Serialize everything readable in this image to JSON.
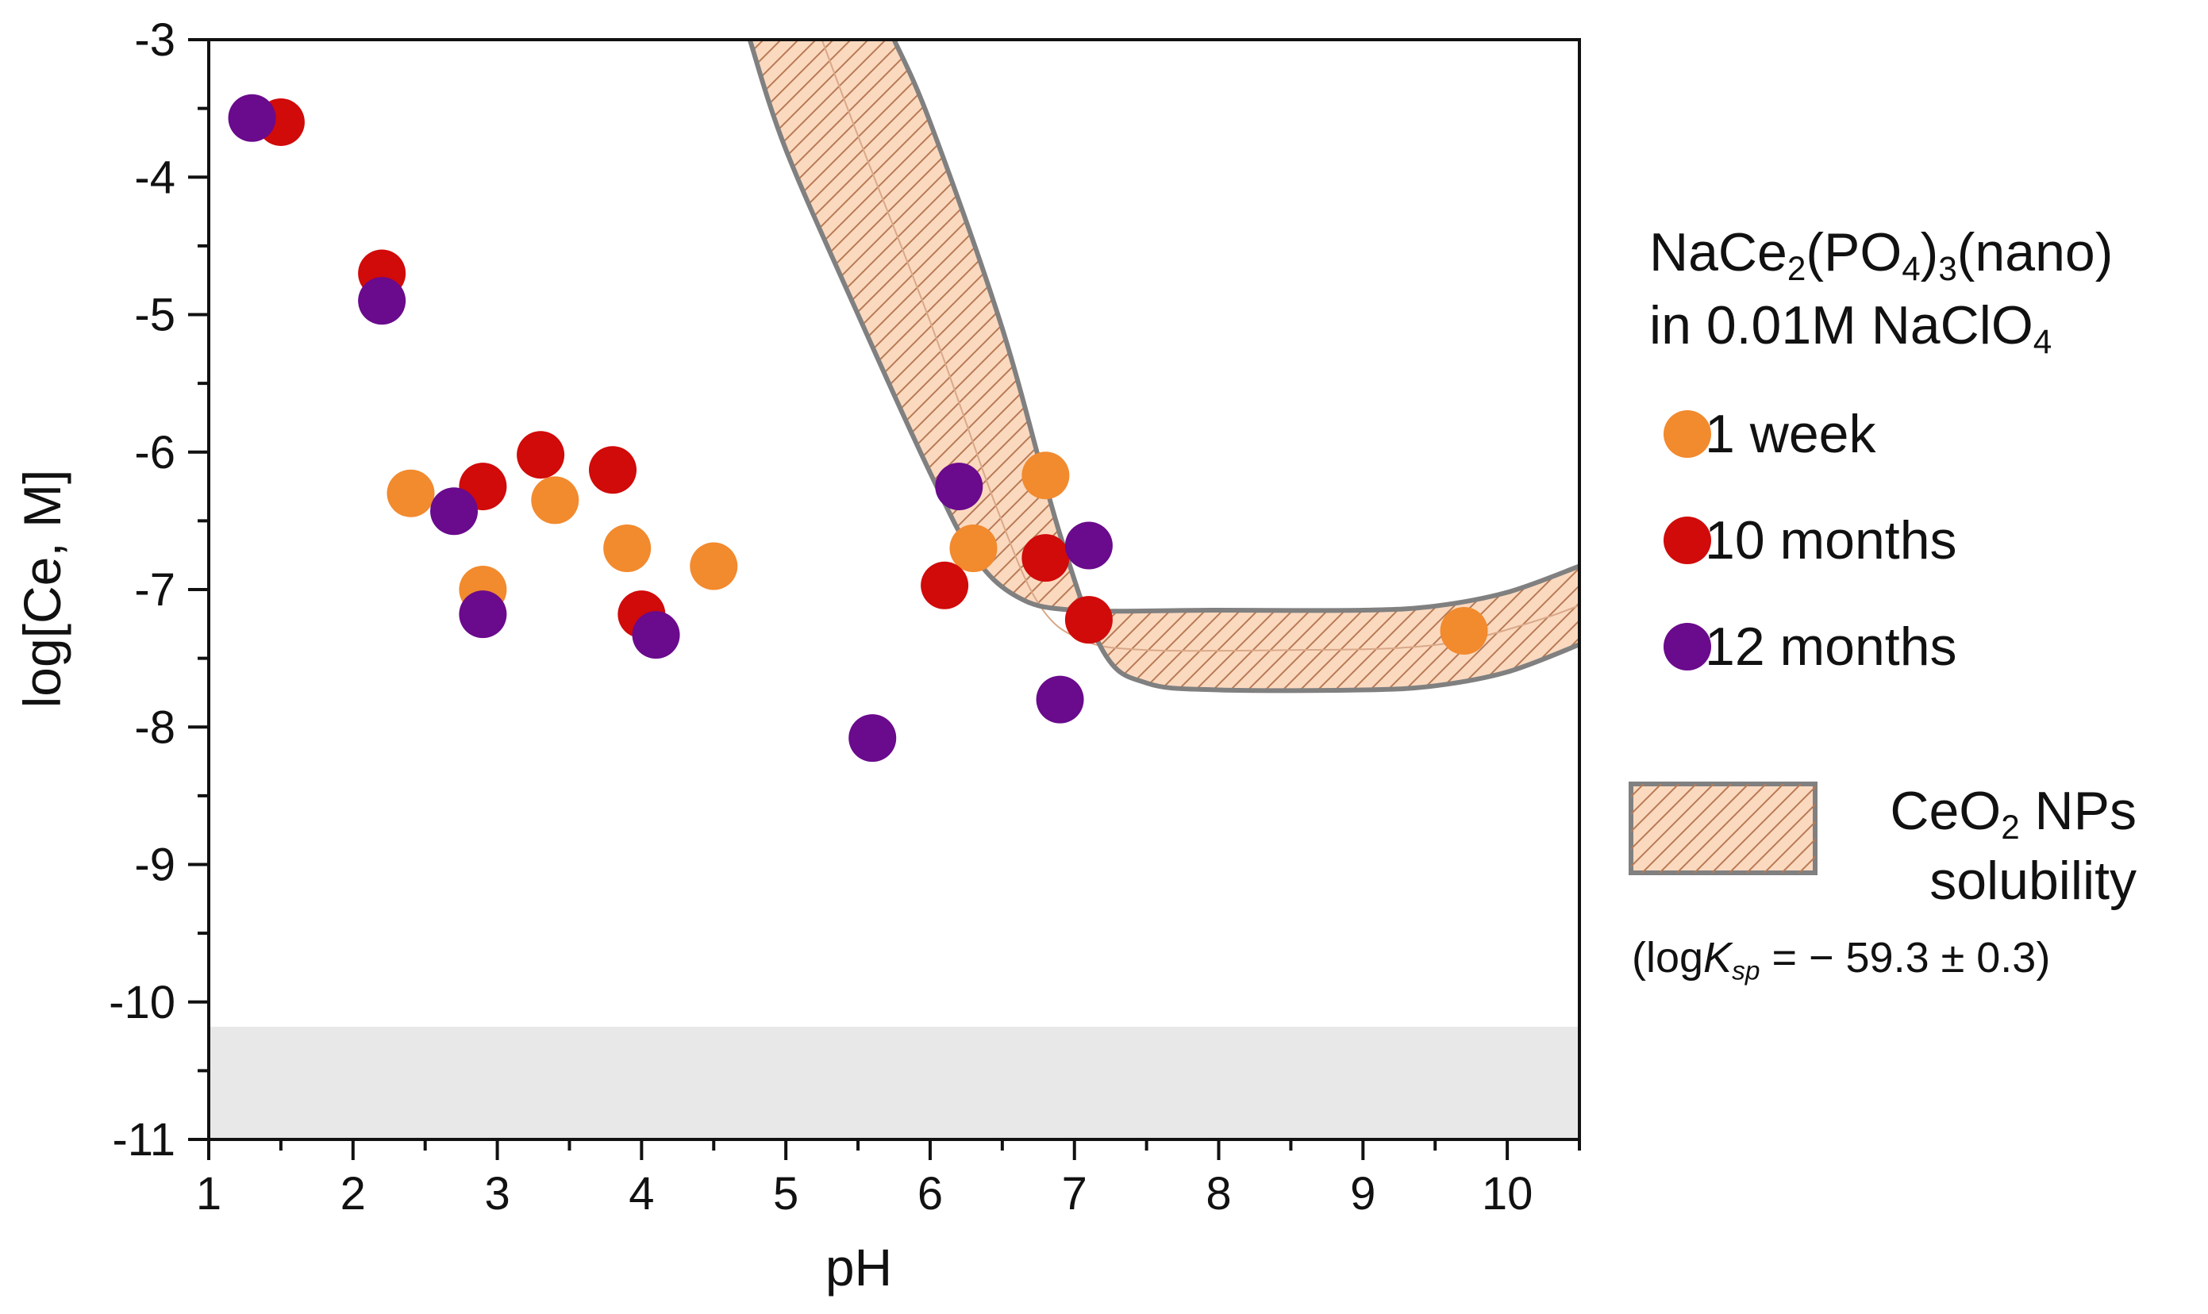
{
  "chart_data": {
    "type": "scatter",
    "xlabel": "pH",
    "ylabel": "log[Ce, M]",
    "xlim": [
      1,
      10.5
    ],
    "ylim": [
      -11,
      -3
    ],
    "x_ticks": [
      "1",
      "2",
      "3",
      "4",
      "5",
      "6",
      "7",
      "8",
      "9",
      "10"
    ],
    "y_ticks": [
      "-3",
      "-4",
      "-5",
      "-6",
      "-7",
      "-8",
      "-9",
      "-10",
      "-11"
    ],
    "legend_title": {
      "line1": {
        "a": "NaCe",
        "a_sub": "2",
        "b": "(PO",
        "b_sub": "4",
        "c": ")",
        "c_sub": "3",
        "d": "(nano)"
      },
      "line2": {
        "a": "in 0.01M NaClO",
        "a_sub": "4"
      }
    },
    "series": [
      {
        "name": "1 week",
        "color": "#f28a2e",
        "points": [
          [
            2.4,
            -6.3
          ],
          [
            2.9,
            -7.0
          ],
          [
            3.4,
            -6.35
          ],
          [
            3.9,
            -6.7
          ],
          [
            4.5,
            -6.83
          ],
          [
            6.3,
            -6.7
          ],
          [
            6.8,
            -6.17
          ],
          [
            9.7,
            -7.3
          ]
        ]
      },
      {
        "name": "10 months",
        "color": "#d10a0a",
        "points": [
          [
            1.5,
            -3.6
          ],
          [
            2.2,
            -4.7
          ],
          [
            2.9,
            -6.25
          ],
          [
            3.3,
            -6.02
          ],
          [
            3.8,
            -6.13
          ],
          [
            4.0,
            -7.18
          ],
          [
            6.1,
            -6.97
          ],
          [
            6.8,
            -6.77
          ],
          [
            7.1,
            -7.22
          ]
        ]
      },
      {
        "name": "12 months",
        "color": "#6a0a8c",
        "points": [
          [
            1.3,
            -3.57
          ],
          [
            2.2,
            -4.9
          ],
          [
            2.7,
            -6.43
          ],
          [
            2.9,
            -7.18
          ],
          [
            4.1,
            -7.33
          ],
          [
            5.6,
            -8.08
          ],
          [
            6.2,
            -6.25
          ],
          [
            6.9,
            -7.8
          ],
          [
            7.1,
            -6.68
          ]
        ]
      }
    ],
    "band": {
      "name_a": "CeO",
      "name_a_sub": "2",
      "name_b": " NPs",
      "name_line2": "solubility",
      "note_a": "(log",
      "note_k": "K",
      "note_sub": "sp",
      "note_b": " = − 59.3 ± 0.3)",
      "fill": "#fbd9bf",
      "edge_color": "#808080",
      "upper": [
        [
          4.75,
          -3.0
        ],
        [
          5.0,
          -3.8
        ],
        [
          5.5,
          -5.0
        ],
        [
          6.0,
          -6.15
        ],
        [
          6.3,
          -6.75
        ],
        [
          6.6,
          -7.05
        ],
        [
          7.0,
          -7.15
        ],
        [
          8.0,
          -7.15
        ],
        [
          9.0,
          -7.15
        ],
        [
          9.5,
          -7.12
        ],
        [
          10.0,
          -7.02
        ],
        [
          10.5,
          -6.83
        ]
      ],
      "lower": [
        [
          5.75,
          -3.0
        ],
        [
          6.0,
          -3.6
        ],
        [
          6.5,
          -5.1
        ],
        [
          6.9,
          -6.6
        ],
        [
          7.2,
          -7.45
        ],
        [
          7.5,
          -7.68
        ],
        [
          8.0,
          -7.73
        ],
        [
          9.0,
          -7.73
        ],
        [
          9.5,
          -7.7
        ],
        [
          10.0,
          -7.6
        ],
        [
          10.5,
          -7.4
        ]
      ]
    },
    "detection_limit_region": {
      "ymin": -11,
      "ymax": -10.18,
      "color": "#e8e8e8"
    }
  }
}
